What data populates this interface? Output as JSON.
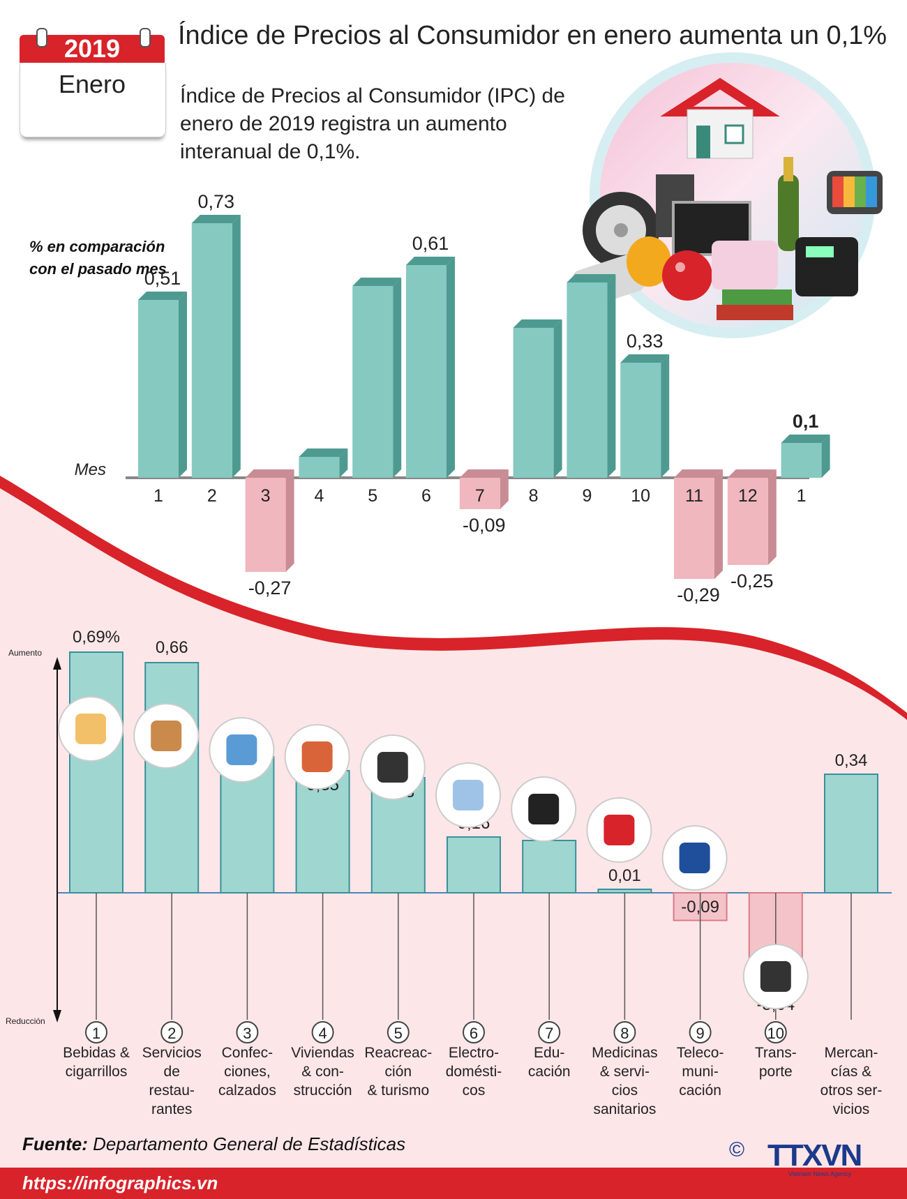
{
  "header": {
    "year": "2019",
    "month": "Enero",
    "title": "Índice de Precios al Consumidor en enero aumenta un 0,1%",
    "subtitle": "Índice de Precios al Consumidor (IPC) de enero de 2019 registra un aumento interanual de 0,1%."
  },
  "chart_top_label_1": "% en comparación",
  "chart_top_label_2": "con el pasado mes",
  "chart_data": [
    {
      "type": "bar",
      "xlabel": "Mes",
      "ylabel": "% en comparación con el pasado mes",
      "categories": [
        "1",
        "2",
        "3",
        "4",
        "5",
        "6",
        "7",
        "8",
        "9",
        "10",
        "11",
        "12",
        "1"
      ],
      "values": [
        0.51,
        0.73,
        -0.27,
        0.06,
        0.55,
        0.61,
        -0.09,
        0.43,
        0.56,
        0.33,
        -0.29,
        -0.25,
        0.1
      ],
      "data_labels": [
        "0,51",
        "0,73",
        "-0,27",
        "",
        "",
        "0,61",
        "-0,09",
        "",
        "",
        "0,33",
        "-0,29",
        "-0,25",
        "0,1"
      ],
      "ylim": [
        -0.3,
        0.8
      ]
    },
    {
      "type": "bar",
      "axis_top_label": "Aumento",
      "axis_bottom_label": "Reducción",
      "categories": [
        "Bebidas & cigarrillos",
        "Servicios de restaurantes",
        "Confecciones, calzados",
        "Viviendas & construcción",
        "Reacreación & turismo",
        "Electrodomésticos",
        "Educación",
        "Medicinas & servicios sanitarios",
        "Telecomunicación",
        "Transporte",
        "Mercancías & otros servicios"
      ],
      "category_lines": [
        [
          "Bebidas &",
          "cigarrillos"
        ],
        [
          "Servicios",
          "de",
          "restau-",
          "rantes"
        ],
        [
          "Confec-",
          "ciones,",
          "calzados"
        ],
        [
          "Viviendas",
          "& con-",
          "strucción"
        ],
        [
          "Reacreac-",
          "ción",
          "& turismo"
        ],
        [
          "Electro-",
          "domésti-",
          "cos"
        ],
        [
          "Edu-",
          "cación"
        ],
        [
          "Medicinas",
          "& servi-",
          "cios",
          "sanitarios"
        ],
        [
          "Teleco-",
          "muni-",
          "cación"
        ],
        [
          "Trans-",
          "porte"
        ],
        [
          "Mercan-",
          "cías &",
          "otros ser-",
          "vicios"
        ]
      ],
      "numbers": [
        "1",
        "2",
        "3",
        "4",
        "5",
        "6",
        "7",
        "8",
        "9",
        "10",
        ""
      ],
      "values": [
        0.69,
        0.66,
        0.39,
        0.35,
        0.33,
        0.16,
        0.15,
        0.01,
        -0.09,
        -3.04,
        0.34
      ],
      "data_labels": [
        "0,69%",
        "0,66",
        "0,39",
        "0,35",
        "0,33",
        "0,16",
        "0,15",
        "0,01",
        "-0,09",
        "-3,04",
        "0,34"
      ],
      "icons": [
        "drinks-cigarettes-icon",
        "restaurant-meal-icon",
        "clothes-shoes-icon",
        "house-icon",
        "clapperboard-icon",
        "washing-machine-icon",
        "graduation-cap-icon",
        "medicine-capsule-icon",
        "radio-tower-icon",
        "traffic-light-icon",
        ""
      ]
    }
  ],
  "source": {
    "label": "Fuente:",
    "text": "Departamento General de Estadísticas"
  },
  "footer": {
    "url": "https://infographics.vn",
    "copyright": "©",
    "logo": "TTXVN",
    "agency": "Vietnam News Agency"
  },
  "colors": {
    "teal": "#86c9c0",
    "teal_dark": "#4e9a90",
    "pink": "#f0b7be",
    "pink_dark": "#c98c94",
    "red": "#d8232a",
    "bg_pink": "#fde6e8"
  }
}
